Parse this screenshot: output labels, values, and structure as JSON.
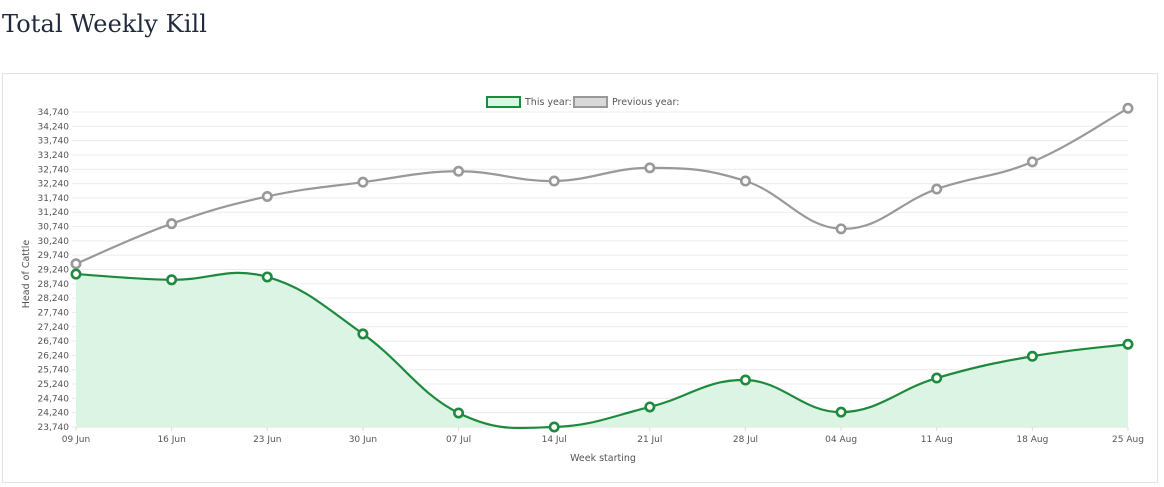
{
  "page": {
    "title": "Total Weekly Kill"
  },
  "colors": {
    "this_year_line": "#1e8a3e",
    "this_year_fill": "#dcf4e3",
    "previous_year_line": "#999999",
    "previous_year_fill": "#d9d9d9",
    "grid": "#ececec"
  },
  "chart_data": {
    "type": "line",
    "title": "Total Weekly Kill",
    "xlabel": "Week starting",
    "ylabel": "Head of Cattle",
    "categories": [
      "09 Jun",
      "16 Jun",
      "23 Jun",
      "30 Jun",
      "07 Jul",
      "14 Jul",
      "21 Jul",
      "28 Jul",
      "04 Aug",
      "11 Aug",
      "18 Aug",
      "25 Aug"
    ],
    "y_ticks": [
      23740,
      24240,
      24740,
      25240,
      25740,
      26240,
      26740,
      27240,
      27740,
      28240,
      28740,
      29240,
      29740,
      30240,
      30740,
      31240,
      31740,
      32240,
      32740,
      33240,
      33740,
      34240,
      34740
    ],
    "y_tick_labels": [
      "23,740",
      "24,240",
      "24,740",
      "25,240",
      "25,740",
      "26,240",
      "26,740",
      "27,240",
      "27,740",
      "28,240",
      "28,740",
      "29,240",
      "29,740",
      "30,240",
      "30,740",
      "31,240",
      "31,740",
      "32,240",
      "32,740",
      "33,240",
      "33,740",
      "34,240",
      "34,740"
    ],
    "ylim": [
      23740,
      34740
    ],
    "grid": true,
    "legend_position": "top-center",
    "series": [
      {
        "name": "This year:",
        "values": [
          29080,
          28880,
          28980,
          26990,
          24230,
          23740,
          24440,
          25380,
          24260,
          25450,
          26210,
          26630
        ],
        "filled": true
      },
      {
        "name": "Previous year:",
        "values": [
          29440,
          30840,
          31790,
          32290,
          32670,
          32330,
          32790,
          32330,
          30660,
          32050,
          33000,
          34870
        ],
        "filled": false
      }
    ]
  }
}
